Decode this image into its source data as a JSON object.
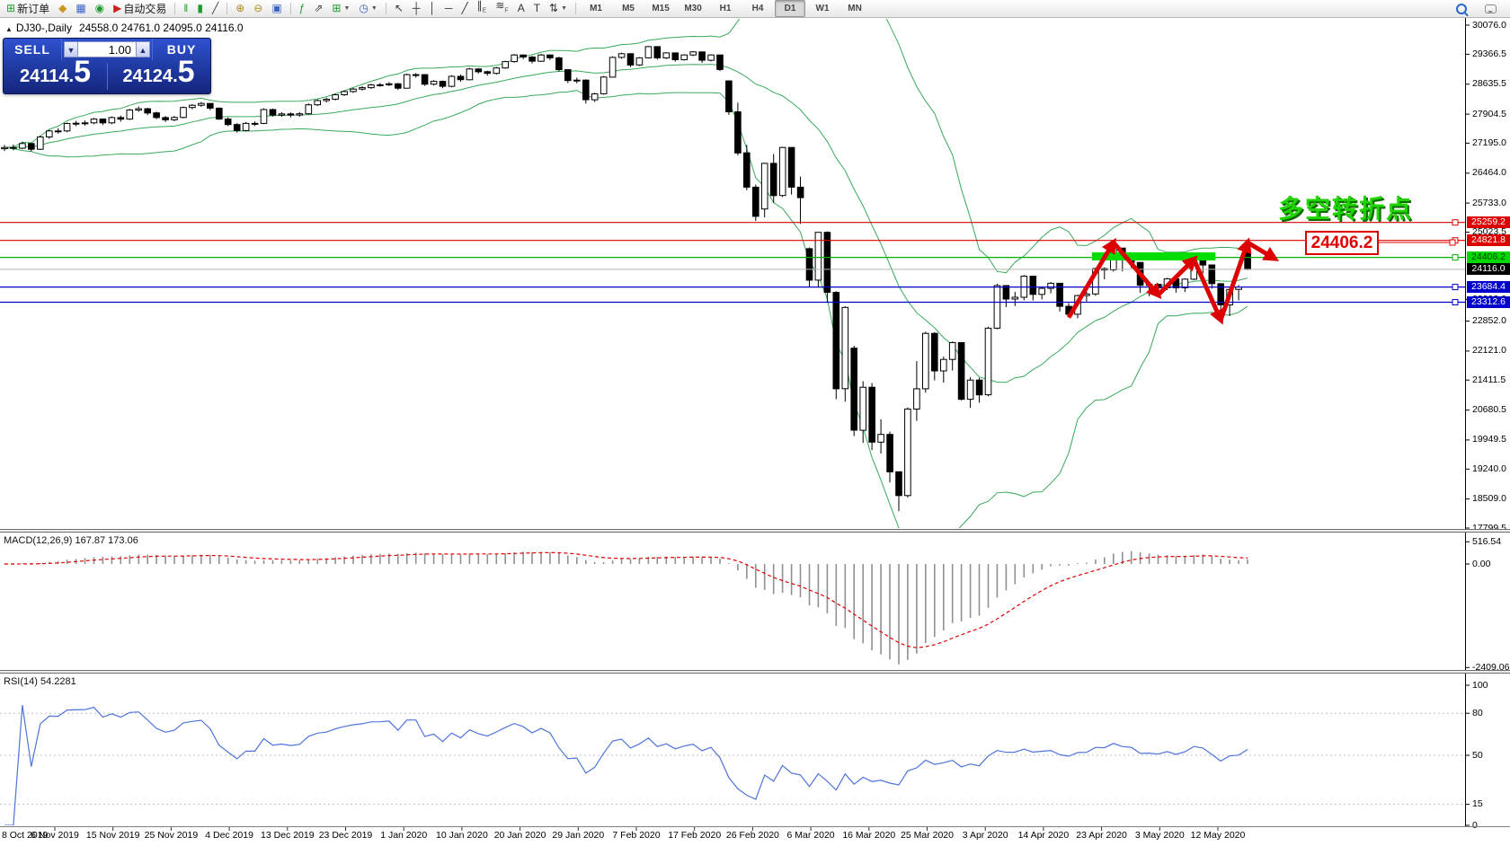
{
  "toolbar": {
    "left_groups": [
      {
        "items": [
          {
            "name": "new-order-button",
            "glyph": "⊞",
            "glyph_color": "#1a9c2a",
            "label": "新订单"
          },
          {
            "name": "market-watch-button",
            "glyph": "◆",
            "glyph_color": "#c8971d"
          },
          {
            "name": "data-window-button",
            "glyph": "▦",
            "glyph_color": "#3a62c0"
          },
          {
            "name": "navigator-button",
            "glyph": "◉",
            "glyph_color": "#1a9c2a"
          },
          {
            "name": "autotrading-button",
            "glyph": "▶",
            "glyph_color": "#cc2222",
            "label": "自动交易"
          }
        ]
      },
      {
        "items": [
          {
            "name": "bar-chart-button",
            "glyph": "‖",
            "glyph_color": "#1a9c2a"
          },
          {
            "name": "candlestick-chart-button",
            "glyph": "▮",
            "glyph_color": "#1a9c2a"
          },
          {
            "name": "line-chart-button",
            "glyph": "╱",
            "glyph_color": "#444444"
          }
        ]
      },
      {
        "items": [
          {
            "name": "zoom-in-button",
            "glyph": "⊕",
            "glyph_color": "#b08c1e"
          },
          {
            "name": "zoom-out-button",
            "glyph": "⊖",
            "glyph_color": "#b08c1e"
          },
          {
            "name": "tile-windows-button",
            "glyph": "▣",
            "glyph_color": "#3a62c0"
          }
        ]
      },
      {
        "items": [
          {
            "name": "indicators-button",
            "glyph": "ƒ",
            "glyph_color": "#1a9c2a"
          },
          {
            "name": "objects-button",
            "glyph": "⇗",
            "glyph_color": "#444444"
          },
          {
            "name": "templates-button",
            "glyph": "⊞",
            "glyph_color": "#1a9c2a",
            "dropdown": true
          },
          {
            "name": "periods-button",
            "glyph": "◷",
            "glyph_color": "#3a62c0",
            "dropdown": true
          }
        ]
      },
      {
        "items": [
          {
            "name": "cursor-button",
            "glyph": "↖",
            "glyph_color": "#333333"
          },
          {
            "name": "crosshair-button",
            "glyph": "┼",
            "glyph_color": "#333333"
          },
          {
            "name": "vertical-line-button",
            "glyph": "│",
            "glyph_color": "#333333"
          },
          {
            "name": "horizontal-line-button",
            "glyph": "─",
            "glyph_color": "#333333"
          },
          {
            "name": "trendline-button",
            "glyph": "╱",
            "glyph_color": "#333333"
          },
          {
            "name": "equidistant-channel-button",
            "glyph": "∥",
            "sub": "E",
            "glyph_color": "#333333"
          },
          {
            "name": "fibonacci-button",
            "glyph": "≋",
            "sub": "F",
            "glyph_color": "#333333"
          },
          {
            "name": "text-button",
            "glyph": "A",
            "glyph_color": "#333333"
          },
          {
            "name": "text-label-button",
            "glyph": "T",
            "glyph_color": "#333333"
          },
          {
            "name": "arrows-button",
            "glyph": "⇅",
            "glyph_color": "#333333",
            "dropdown": true
          }
        ]
      }
    ],
    "timeframes": [
      "M1",
      "M5",
      "M15",
      "M30",
      "H1",
      "H4",
      "D1",
      "W1",
      "MN"
    ],
    "active_timeframe": "D1"
  },
  "chart_header": {
    "marker_glyph": "▲",
    "symbol": "DJ30-,Daily",
    "ohlc": "24558.0 24761.0 24095.0 24116.0"
  },
  "trade_panel": {
    "sell_label": "SELL",
    "buy_label": "BUY",
    "volume": "1.00",
    "volume_down_glyph": "▼",
    "volume_up_glyph": "▲",
    "sell_price_main": "24114",
    "sell_price_pip": "5",
    "buy_price_main": "24124",
    "buy_price_pip": "5"
  },
  "annotations": {
    "turning_point_text": "多空转折点",
    "price_callout": "24406.2"
  },
  "macd_panel": {
    "title": "MACD(12,26,9)",
    "values": "167.87 173.06",
    "axis_ticks": [
      "516.54",
      "0.00",
      "-2409.06"
    ]
  },
  "rsi_panel": {
    "title": "RSI(14)",
    "value": "54.2281",
    "axis_ticks": [
      "100",
      "80",
      "50",
      "15",
      "0"
    ]
  },
  "chart_data": {
    "type": "candlestick",
    "symbol": "DJ30",
    "timeframe": "Daily",
    "title": "DJ30-,Daily",
    "ylim": [
      17799.5,
      30076.0
    ],
    "macd_ylim": [
      -2409.06,
      516.54
    ],
    "rsi_ylim": [
      0,
      100
    ],
    "rsi_levels": [
      80,
      50,
      15
    ],
    "grid": false,
    "x_labels": [
      "8 Oct 2019",
      "6 Nov 2019",
      "15 Nov 2019",
      "25 Nov 2019",
      "4 Dec 2019",
      "13 Dec 2019",
      "23 Dec 2019",
      "1 Jan 2020",
      "10 Jan 2020",
      "20 Jan 2020",
      "29 Jan 2020",
      "7 Feb 2020",
      "17 Feb 2020",
      "26 Feb 2020",
      "6 Mar 2020",
      "16 Mar 2020",
      "25 Mar 2020",
      "3 Apr 2020",
      "14 Apr 2020",
      "23 Apr 2020",
      "3 May 2020",
      "12 May 2020"
    ],
    "price_axis_ticks": [
      30076.0,
      29366.5,
      28635.5,
      27904.5,
      27195.0,
      26464.0,
      25733.0,
      25023.5,
      23383.0,
      22852.0,
      22121.0,
      21411.5,
      20680.5,
      19949.5,
      19240.0,
      18509.0,
      17799.5
    ],
    "hlines": [
      {
        "price": 25259.2,
        "color": "#dd0000",
        "badge_bg": "#dd0000",
        "badge_fg": "#ffffff"
      },
      {
        "price": 24821.8,
        "color": "#dd0000",
        "badge_bg": "#dd0000",
        "badge_fg": "#ffffff"
      },
      {
        "price": 24406.2,
        "color": "#00b200",
        "badge_bg": "#00d800",
        "badge_fg": "#033e03"
      },
      {
        "price": 23684.4,
        "color": "#0000cc",
        "badge_bg": "#0000cc",
        "badge_fg": "#ffffff"
      },
      {
        "price": 23312.6,
        "color": "#0000cc",
        "badge_bg": "#0000cc",
        "badge_fg": "#ffffff"
      }
    ],
    "current_price": 24116.0,
    "current_price_badge": {
      "bg": "#000000",
      "fg": "#ffffff"
    },
    "highlight_bar": {
      "from_bar": 122,
      "to_bar": 135,
      "price": 24430,
      "color": "#00dd00"
    },
    "zigzag_arrows": {
      "color": "#dd0000",
      "points": [
        [
          119,
          22940
        ],
        [
          124,
          24770
        ],
        [
          129,
          23490
        ],
        [
          133,
          24360
        ],
        [
          136,
          22880
        ],
        [
          139,
          24770
        ],
        [
          142,
          24380
        ]
      ]
    },
    "indicators": {
      "bollinger": {
        "period": 20,
        "deviation": 2,
        "color": "#3aa85c"
      },
      "macd": {
        "fast": 12,
        "slow": 26,
        "signal": 9,
        "hist_color": "#909090",
        "signal_color": "#e00000"
      },
      "rsi": {
        "period": 14,
        "color": "#4f74d9",
        "level_color": "#c0c0c0"
      }
    },
    "ohlc": [
      [
        27060,
        27150,
        27000,
        27090
      ],
      [
        27090,
        27160,
        27020,
        27071
      ],
      [
        27071,
        27230,
        27050,
        27186
      ],
      [
        27186,
        27200,
        26990,
        27046
      ],
      [
        27046,
        27380,
        27030,
        27347
      ],
      [
        27347,
        27520,
        27300,
        27493
      ],
      [
        27493,
        27560,
        27430,
        27492
      ],
      [
        27492,
        27700,
        27460,
        27675
      ],
      [
        27675,
        27740,
        27610,
        27681
      ],
      [
        27681,
        27750,
        27620,
        27691
      ],
      [
        27691,
        27810,
        27660,
        27783
      ],
      [
        27783,
        27800,
        27640,
        27691
      ],
      [
        27691,
        27850,
        27660,
        27821
      ],
      [
        27821,
        27870,
        27720,
        27782
      ],
      [
        27782,
        28030,
        27760,
        28004
      ],
      [
        28004,
        28090,
        27960,
        28036
      ],
      [
        28036,
        28060,
        27880,
        27934
      ],
      [
        27934,
        27960,
        27780,
        27821
      ],
      [
        27821,
        27860,
        27710,
        27766
      ],
      [
        27766,
        27860,
        27730,
        27822
      ],
      [
        27822,
        28090,
        27800,
        28066
      ],
      [
        28066,
        28150,
        28020,
        28121
      ],
      [
        28121,
        28200,
        28080,
        28164
      ],
      [
        28164,
        28180,
        28000,
        28051
      ],
      [
        28051,
        28065,
        27765,
        27783
      ],
      [
        27783,
        27825,
        27615,
        27649
      ],
      [
        27649,
        27685,
        27455,
        27502
      ],
      [
        27502,
        27715,
        27480,
        27678
      ],
      [
        27678,
        27725,
        27615,
        27677
      ],
      [
        27677,
        28045,
        27660,
        28015
      ],
      [
        28015,
        28040,
        27845,
        27881
      ],
      [
        27881,
        27955,
        27840,
        27911
      ],
      [
        27911,
        27945,
        27825,
        27882
      ],
      [
        27882,
        27955,
        27840,
        27912
      ],
      [
        27912,
        28165,
        27890,
        28132
      ],
      [
        28132,
        28265,
        28100,
        28235
      ],
      [
        28235,
        28305,
        28190,
        28268
      ],
      [
        28268,
        28405,
        28240,
        28376
      ],
      [
        28376,
        28485,
        28350,
        28455
      ],
      [
        28455,
        28545,
        28420,
        28515
      ],
      [
        28515,
        28585,
        28480,
        28551
      ],
      [
        28551,
        28645,
        28520,
        28616
      ],
      [
        28616,
        28665,
        28575,
        28621
      ],
      [
        28621,
        28685,
        28590,
        28645
      ],
      [
        28645,
        28665,
        28495,
        28538
      ],
      [
        28538,
        28895,
        28530,
        28869
      ],
      [
        28869,
        28905,
        28795,
        28869
      ],
      [
        28869,
        28880,
        28595,
        28635
      ],
      [
        28635,
        28735,
        28600,
        28704
      ],
      [
        28704,
        28725,
        28540,
        28584
      ],
      [
        28584,
        28855,
        28560,
        28827
      ],
      [
        28827,
        28870,
        28695,
        28745
      ],
      [
        28745,
        29035,
        28730,
        29007
      ],
      [
        29007,
        29025,
        28895,
        28940
      ],
      [
        28940,
        28965,
        28845,
        28898
      ],
      [
        28898,
        29055,
        28870,
        29030
      ],
      [
        29030,
        29205,
        29010,
        29186
      ],
      [
        29186,
        29375,
        29160,
        29348
      ],
      [
        29348,
        29360,
        29245,
        29297
      ],
      [
        29297,
        29325,
        29145,
        29196
      ],
      [
        29196,
        29375,
        29180,
        29349
      ],
      [
        29349,
        29360,
        29225,
        29278
      ],
      [
        29278,
        29305,
        28945,
        28989
      ],
      [
        28989,
        29000,
        28665,
        28723
      ],
      [
        28723,
        28795,
        28655,
        28735
      ],
      [
        28735,
        28755,
        28165,
        28256
      ],
      [
        28256,
        28425,
        28200,
        28400
      ],
      [
        28400,
        28835,
        28380,
        28808
      ],
      [
        28808,
        29315,
        28800,
        29290
      ],
      [
        29290,
        29405,
        29255,
        29379
      ],
      [
        29379,
        29390,
        29055,
        29103
      ],
      [
        29103,
        29295,
        29080,
        29277
      ],
      [
        29277,
        29568,
        29260,
        29551
      ],
      [
        29551,
        29560,
        29235,
        29276
      ],
      [
        29276,
        29415,
        29250,
        29398
      ],
      [
        29398,
        29400,
        29185,
        29232
      ],
      [
        29232,
        29365,
        29210,
        29348
      ],
      [
        29348,
        29445,
        29320,
        29423
      ],
      [
        29423,
        29430,
        29155,
        29219
      ],
      [
        29219,
        29365,
        29190,
        29348
      ],
      [
        29348,
        29355,
        28955,
        28992
      ],
      [
        28715,
        28730,
        27885,
        27961
      ],
      [
        27961,
        28185,
        26895,
        26958
      ],
      [
        26958,
        27155,
        26045,
        26121
      ],
      [
        26121,
        26185,
        25295,
        25409
      ],
      [
        25590,
        26715,
        25385,
        26703
      ],
      [
        26703,
        26930,
        25740,
        25917
      ],
      [
        25917,
        27105,
        25880,
        27090
      ],
      [
        27090,
        27100,
        25940,
        26121
      ],
      [
        26121,
        26375,
        25225,
        25864
      ],
      [
        24620,
        24650,
        23685,
        23851
      ],
      [
        23851,
        25025,
        23670,
        25018
      ],
      [
        25018,
        25040,
        23325,
        23553
      ],
      [
        23553,
        23580,
        20945,
        21200
      ],
      [
        21200,
        23215,
        20885,
        23185
      ],
      [
        22190,
        22250,
        20045,
        20188
      ],
      [
        20188,
        21385,
        19880,
        21237
      ],
      [
        21237,
        21340,
        19705,
        19898
      ],
      [
        19898,
        20455,
        19620,
        20087
      ],
      [
        20087,
        20155,
        18915,
        19173
      ],
      [
        19173,
        19180,
        18213,
        18592
      ],
      [
        18592,
        20745,
        18545,
        20704
      ],
      [
        20704,
        21875,
        20415,
        21200
      ],
      [
        21200,
        22595,
        21105,
        22552
      ],
      [
        22552,
        22580,
        21405,
        21636
      ],
      [
        21636,
        21985,
        21350,
        21917
      ],
      [
        21917,
        22355,
        21645,
        22327
      ],
      [
        22327,
        22335,
        20915,
        20943
      ],
      [
        20943,
        21485,
        20735,
        21413
      ],
      [
        21413,
        21465,
        20860,
        21052
      ],
      [
        21052,
        22715,
        21020,
        22679
      ],
      [
        22679,
        23765,
        22650,
        23719
      ],
      [
        23719,
        23730,
        23195,
        23390
      ],
      [
        23390,
        23565,
        23220,
        23433
      ],
      [
        23433,
        23975,
        23360,
        23949
      ],
      [
        23949,
        23960,
        23355,
        23504
      ],
      [
        23504,
        23695,
        23380,
        23650
      ],
      [
        23650,
        23805,
        23530,
        23775
      ],
      [
        23775,
        23780,
        23085,
        23212
      ],
      [
        23212,
        23285,
        22940,
        23018
      ],
      [
        23018,
        23495,
        22925,
        23475
      ],
      [
        23475,
        23565,
        23330,
        23515
      ],
      [
        23515,
        24155,
        23470,
        24133
      ],
      [
        24133,
        24165,
        23870,
        24101
      ],
      [
        24101,
        24764,
        24060,
        24634
      ],
      [
        24634,
        24640,
        24065,
        24346
      ],
      [
        24346,
        24405,
        24145,
        24284
      ],
      [
        24284,
        24290,
        23540,
        23724
      ],
      [
        23724,
        23800,
        23460,
        23750
      ],
      [
        23750,
        23770,
        23555,
        23665
      ],
      [
        23665,
        23905,
        23610,
        23884
      ],
      [
        23884,
        23900,
        23545,
        23665
      ],
      [
        23665,
        23895,
        23560,
        23876
      ],
      [
        23876,
        24355,
        23850,
        24331
      ],
      [
        24331,
        24345,
        24015,
        24222
      ],
      [
        24222,
        24230,
        23645,
        23765
      ],
      [
        23765,
        23780,
        22890,
        23248
      ],
      [
        23248,
        23655,
        22975,
        23625
      ],
      [
        23625,
        23735,
        23355,
        23685
      ],
      [
        24558,
        24761,
        24095,
        24116
      ]
    ]
  }
}
